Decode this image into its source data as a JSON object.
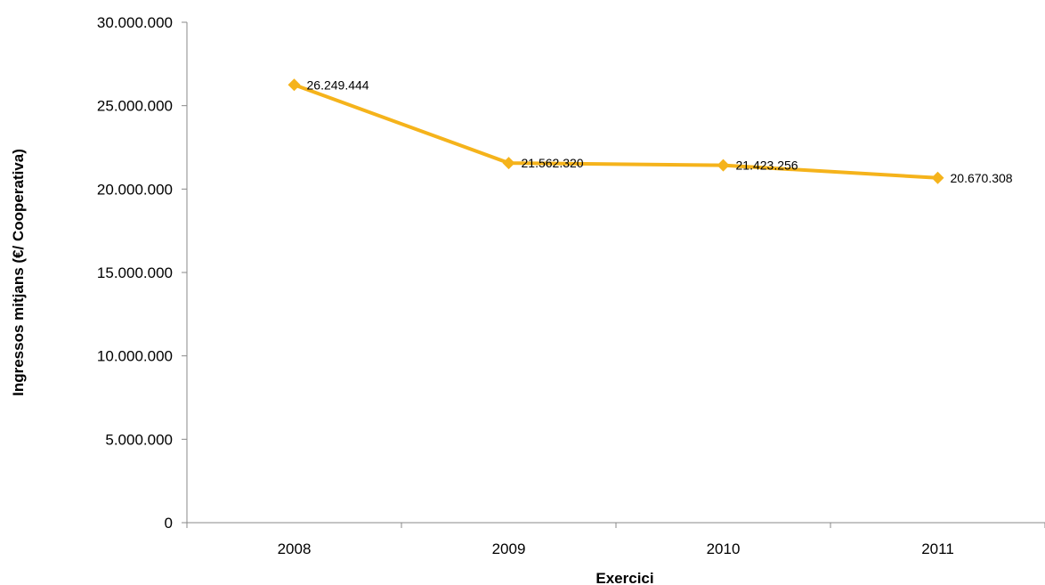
{
  "chart_data": {
    "type": "line",
    "title": "",
    "xlabel": "Exercici",
    "ylabel": "Ingressos mitjans (€/ Cooperativa)",
    "categories": [
      "2008",
      "2009",
      "2010",
      "2011"
    ],
    "series": [
      {
        "values": [
          26249444,
          21562320,
          21423256,
          20670308
        ],
        "value_labels": [
          "26.249.444",
          "21.562.320",
          "21.423.256",
          "20.670.308"
        ],
        "color": "#F5B31B",
        "marker": "diamond"
      }
    ],
    "ylim": [
      0,
      30000000
    ],
    "y_ticks": [
      0,
      5000000,
      10000000,
      15000000,
      20000000,
      25000000,
      30000000
    ],
    "y_tick_labels": [
      "0",
      "5.000.000",
      "10.000.000",
      "15.000.000",
      "20.000.000",
      "25.000.000",
      "30.000.000"
    ],
    "grid": false,
    "legend": "none"
  }
}
